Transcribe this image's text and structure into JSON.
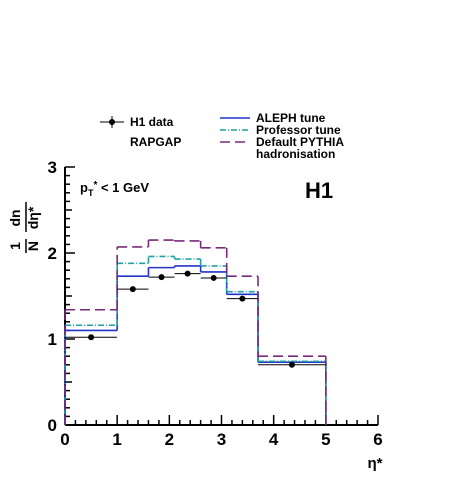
{
  "chart_data": {
    "type": "histogram",
    "annotation": [
      "p",
      "T",
      "*",
      " < 1 GeV"
    ],
    "logo": "H1",
    "legend_heading": "RAPGAP",
    "x_label": "η*",
    "y_label": [
      "1",
      "N",
      "dn",
      "dη*"
    ],
    "bins": [
      0,
      1,
      1.6,
      2.1,
      2.6,
      3.1,
      3.7,
      5
    ],
    "xlim": [
      0,
      6
    ],
    "xticks": [
      0,
      1,
      2,
      3,
      4,
      5,
      6
    ],
    "ylim": [
      0,
      3
    ],
    "yticks": [
      0,
      1,
      2,
      3
    ],
    "points": {
      "name": "H1 data",
      "color": "#000000",
      "values": [
        1.02,
        1.58,
        1.72,
        1.76,
        1.71,
        1.47,
        0.7
      ]
    },
    "series": [
      {
        "name": "ALEPH tune",
        "color": "#2233cc",
        "dash": "",
        "values": [
          1.1,
          1.73,
          1.83,
          1.85,
          1.78,
          1.52,
          0.73
        ]
      },
      {
        "name": "Professor tune",
        "color": "#20a0a0",
        "dash": "6 2 1 2",
        "values": [
          1.16,
          1.88,
          1.96,
          1.93,
          1.85,
          1.55,
          0.74
        ]
      },
      {
        "name": "Default PYTHIA hadronisation",
        "color": "#7a2a7a",
        "dash": "10 5",
        "values": [
          1.34,
          2.07,
          2.15,
          2.14,
          2.06,
          1.73,
          0.8
        ]
      }
    ]
  }
}
